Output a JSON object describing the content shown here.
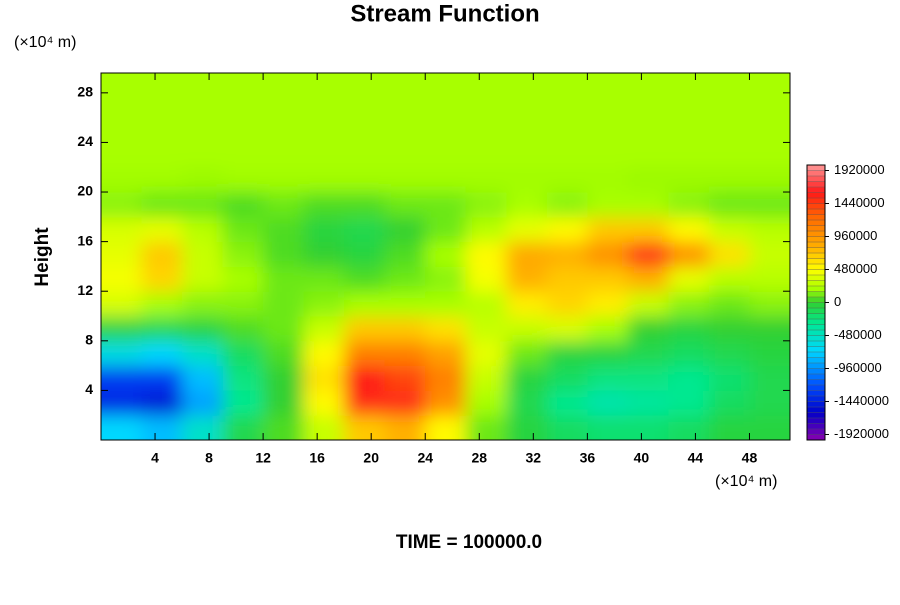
{
  "chart_data": {
    "type": "contour",
    "title": "Stream Function",
    "y_unit_label": "(×10⁴ m)",
    "x_unit_label": "(×10⁴ m)",
    "ylabel": "Height",
    "footer": "TIME = 100000.0",
    "xlim": [
      0,
      51
    ],
    "ylim": [
      0,
      29.6
    ],
    "xticks": [
      4,
      8,
      12,
      16,
      20,
      24,
      28,
      32,
      36,
      40,
      44,
      48
    ],
    "yticks": [
      4,
      8,
      12,
      16,
      20,
      24,
      28
    ],
    "x": [
      1.5,
      4.5,
      7.5,
      10.5,
      13.5,
      16.5,
      19.5,
      22.5,
      25.5,
      28.5,
      31.5,
      34.5,
      37.5,
      40.5,
      43.5,
      46.5,
      49.5
    ],
    "y": [
      1,
      3,
      5,
      7,
      9,
      11,
      13,
      15,
      17,
      19,
      21,
      23,
      25,
      27,
      29
    ],
    "z": [
      [
        -700000,
        -800000,
        -500000,
        -100000,
        50000,
        300000,
        700000,
        800000,
        500000,
        100000,
        -50000,
        -150000,
        -200000,
        -200000,
        -150000,
        -50000,
        -50000
      ],
      [
        -1400000,
        -1500000,
        -900000,
        -300000,
        0,
        500000,
        1500000,
        1500000,
        1000000,
        200000,
        -100000,
        -300000,
        -400000,
        -350000,
        -300000,
        -150000,
        -100000
      ],
      [
        -1300000,
        -1300000,
        -800000,
        -250000,
        0,
        600000,
        1600000,
        1400000,
        1100000,
        300000,
        -50000,
        -150000,
        -250000,
        -250000,
        -300000,
        -200000,
        -100000
      ],
      [
        -600000,
        -700000,
        -500000,
        -150000,
        50000,
        500000,
        1100000,
        1100000,
        900000,
        400000,
        100000,
        -50000,
        -50000,
        -100000,
        -150000,
        -100000,
        -50000
      ],
      [
        -50000,
        -100000,
        -50000,
        50000,
        100000,
        300000,
        700000,
        700000,
        600000,
        300000,
        300000,
        350000,
        200000,
        0,
        -50000,
        0,
        0
      ],
      [
        350000,
        200000,
        150000,
        150000,
        100000,
        150000,
        200000,
        200000,
        200000,
        250000,
        550000,
        650000,
        550000,
        300000,
        150000,
        100000,
        150000
      ],
      [
        450000,
        650000,
        300000,
        200000,
        100000,
        100000,
        50000,
        100000,
        150000,
        450000,
        800000,
        700000,
        700000,
        800000,
        400000,
        250000,
        250000
      ],
      [
        400000,
        700000,
        300000,
        150000,
        50000,
        0,
        -50000,
        50000,
        200000,
        500000,
        850000,
        800000,
        1000000,
        1500000,
        1000000,
        600000,
        300000
      ],
      [
        350000,
        400000,
        250000,
        100000,
        50000,
        -50000,
        -100000,
        0,
        100000,
        250000,
        400000,
        500000,
        700000,
        700000,
        500000,
        300000,
        250000
      ],
      [
        150000,
        100000,
        100000,
        50000,
        100000,
        50000,
        50000,
        100000,
        100000,
        150000,
        200000,
        150000,
        200000,
        200000,
        150000,
        100000,
        100000
      ],
      [
        190000,
        190000,
        180000,
        190000,
        190000,
        190000,
        190000,
        190000,
        190000,
        190000,
        190000,
        190000,
        190000,
        180000,
        180000,
        180000,
        180000
      ],
      [
        200000,
        200000,
        200000,
        200000,
        200000,
        200000,
        200000,
        200000,
        200000,
        200000,
        200000,
        200000,
        200000,
        200000,
        200000,
        200000,
        200000
      ],
      [
        200000,
        200000,
        200000,
        200000,
        200000,
        200000,
        200000,
        200000,
        200000,
        200000,
        200000,
        200000,
        200000,
        200000,
        200000,
        200000,
        200000
      ],
      [
        200000,
        200000,
        200000,
        200000,
        200000,
        200000,
        200000,
        200000,
        200000,
        200000,
        200000,
        200000,
        200000,
        200000,
        200000,
        200000,
        200000
      ],
      [
        200000,
        200000,
        200000,
        200000,
        200000,
        200000,
        200000,
        200000,
        200000,
        200000,
        200000,
        200000,
        200000,
        200000,
        200000,
        200000,
        200000
      ]
    ],
    "clim": [
      -2000000,
      2000000
    ],
    "clevel_step": 80000,
    "colorbar_ticks": [
      1920000,
      1440000,
      960000,
      480000,
      0,
      -480000,
      -960000,
      -1440000,
      -1920000
    ],
    "colormap": [
      [
        -2000000,
        "#8a00b0"
      ],
      [
        -1600000,
        "#0000c8"
      ],
      [
        -1200000,
        "#0050ff"
      ],
      [
        -700000,
        "#00d8ff"
      ],
      [
        -300000,
        "#00e890"
      ],
      [
        0,
        "#30d030"
      ],
      [
        200000,
        "#a8ff00"
      ],
      [
        480000,
        "#ffff00"
      ],
      [
        800000,
        "#ffb000"
      ],
      [
        1200000,
        "#ff7000"
      ],
      [
        1600000,
        "#ff1818"
      ],
      [
        2000000,
        "#ff9a9a"
      ]
    ]
  }
}
